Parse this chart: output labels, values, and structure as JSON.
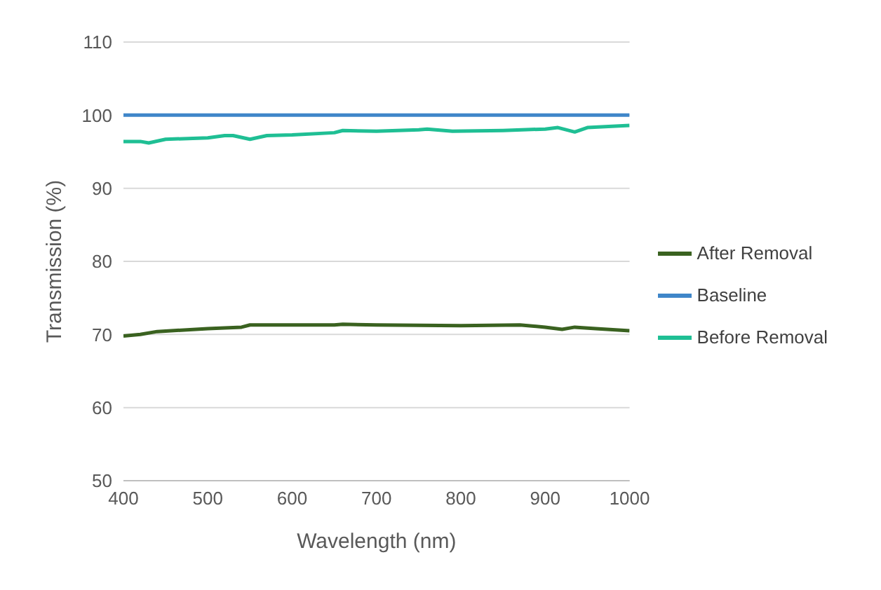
{
  "chart_data": {
    "type": "line",
    "xlabel": "Wavelength (nm)",
    "ylabel": "Transmission (%)",
    "xlim": [
      400,
      1000
    ],
    "xticks": [
      400,
      500,
      600,
      700,
      800,
      900,
      1000
    ],
    "ylim": [
      50,
      110
    ],
    "yticks": [
      50,
      60,
      70,
      80,
      90,
      100,
      110
    ],
    "grid": "y",
    "legend": "right",
    "marker": "none",
    "line_style": "solid",
    "series": [
      {
        "name": "Before Removal",
        "color": "#1fbf94",
        "x": [
          400,
          420,
          430,
          450,
          500,
          520,
          530,
          550,
          570,
          600,
          650,
          660,
          700,
          750,
          760,
          790,
          850,
          900,
          915,
          935,
          950,
          1000
        ],
        "values": [
          96.4,
          96.4,
          96.2,
          96.7,
          96.9,
          97.2,
          97.2,
          96.7,
          97.2,
          97.3,
          97.6,
          97.9,
          97.8,
          98.0,
          98.1,
          97.8,
          97.9,
          98.1,
          98.3,
          97.7,
          98.3,
          98.6
        ]
      },
      {
        "name": "Baseline",
        "color": "#3f86c9",
        "x": [
          400,
          1000
        ],
        "values": [
          100,
          100
        ]
      },
      {
        "name": "After Removal",
        "color": "#3a6220",
        "x": [
          400,
          420,
          440,
          500,
          540,
          550,
          600,
          650,
          660,
          700,
          800,
          870,
          900,
          920,
          935,
          960,
          1000
        ],
        "values": [
          69.8,
          70.0,
          70.4,
          70.8,
          71.0,
          71.3,
          71.3,
          71.3,
          71.4,
          71.3,
          71.2,
          71.3,
          71.0,
          70.7,
          71.0,
          70.8,
          70.5
        ]
      }
    ]
  }
}
